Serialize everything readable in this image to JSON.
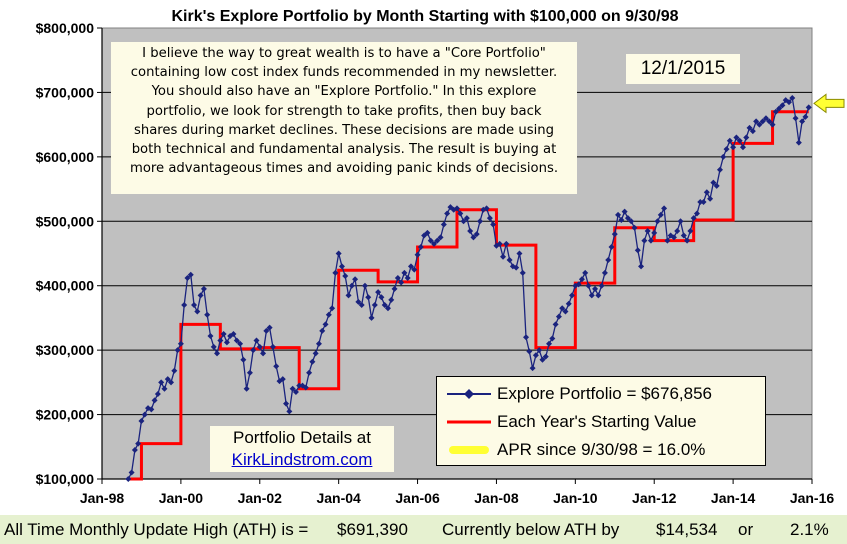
{
  "chart_data": {
    "type": "line",
    "title": "Kirk's Explore Portfolio by Month Starting with $100,000 on 9/30/98",
    "xlabel": "",
    "ylabel": "",
    "x_tick_labels": [
      "Jan-98",
      "Jan-00",
      "Jan-02",
      "Jan-04",
      "Jan-06",
      "Jan-08",
      "Jan-10",
      "Jan-12",
      "Jan-14",
      "Jan-16"
    ],
    "y_tick_labels": [
      "$100,000",
      "$200,000",
      "$300,000",
      "$400,000",
      "$500,000",
      "$600,000",
      "$700,000",
      "$800,000"
    ],
    "ylim": [
      100000,
      800000
    ],
    "xlim": [
      "1998-01",
      "2016-01"
    ],
    "grid": "horizontal",
    "legend_position": "bottom-right",
    "series": [
      {
        "name": "Explore Portfolio  =  $676,856",
        "style": "line-with-diamond-markers",
        "color": "#1a237e",
        "points": [
          [
            "1998-09",
            100000
          ],
          [
            "1998-10",
            110000
          ],
          [
            "1998-11",
            145000
          ],
          [
            "1998-12",
            155000
          ],
          [
            "1999-01",
            190000
          ],
          [
            "1999-02",
            200000
          ],
          [
            "1999-03",
            210000
          ],
          [
            "1999-04",
            208000
          ],
          [
            "1999-05",
            222000
          ],
          [
            "1999-06",
            232000
          ],
          [
            "1999-07",
            250000
          ],
          [
            "1999-08",
            240000
          ],
          [
            "1999-09",
            255000
          ],
          [
            "1999-10",
            250000
          ],
          [
            "1999-11",
            268000
          ],
          [
            "1999-12",
            300000
          ],
          [
            "2000-01",
            310000
          ],
          [
            "2000-02",
            370000
          ],
          [
            "2000-03",
            412000
          ],
          [
            "2000-04",
            417000
          ],
          [
            "2000-05",
            370000
          ],
          [
            "2000-06",
            360000
          ],
          [
            "2000-07",
            385000
          ],
          [
            "2000-08",
            395000
          ],
          [
            "2000-09",
            355000
          ],
          [
            "2000-10",
            322000
          ],
          [
            "2000-11",
            305000
          ],
          [
            "2000-12",
            295000
          ],
          [
            "2001-01",
            315000
          ],
          [
            "2001-02",
            325000
          ],
          [
            "2001-03",
            312000
          ],
          [
            "2001-04",
            322000
          ],
          [
            "2001-05",
            325000
          ],
          [
            "2001-06",
            315000
          ],
          [
            "2001-07",
            310000
          ],
          [
            "2001-08",
            285000
          ],
          [
            "2001-09",
            240000
          ],
          [
            "2001-10",
            265000
          ],
          [
            "2001-11",
            300000
          ],
          [
            "2001-12",
            315000
          ],
          [
            "2002-01",
            305000
          ],
          [
            "2002-02",
            295000
          ],
          [
            "2002-03",
            330000
          ],
          [
            "2002-04",
            335000
          ],
          [
            "2002-05",
            305000
          ],
          [
            "2002-06",
            275000
          ],
          [
            "2002-07",
            252000
          ],
          [
            "2002-08",
            255000
          ],
          [
            "2002-09",
            217000
          ],
          [
            "2002-10",
            205000
          ],
          [
            "2002-11",
            240000
          ],
          [
            "2002-12",
            235000
          ],
          [
            "2003-01",
            245000
          ],
          [
            "2003-02",
            245000
          ],
          [
            "2003-03",
            242000
          ],
          [
            "2003-04",
            265000
          ],
          [
            "2003-05",
            282000
          ],
          [
            "2003-06",
            295000
          ],
          [
            "2003-07",
            310000
          ],
          [
            "2003-08",
            330000
          ],
          [
            "2003-09",
            340000
          ],
          [
            "2003-10",
            355000
          ],
          [
            "2003-11",
            365000
          ],
          [
            "2003-12",
            420000
          ],
          [
            "2004-01",
            450000
          ],
          [
            "2004-02",
            430000
          ],
          [
            "2004-03",
            415000
          ],
          [
            "2004-04",
            385000
          ],
          [
            "2004-05",
            400000
          ],
          [
            "2004-06",
            410000
          ],
          [
            "2004-07",
            375000
          ],
          [
            "2004-08",
            370000
          ],
          [
            "2004-09",
            400000
          ],
          [
            "2004-10",
            382000
          ],
          [
            "2004-11",
            350000
          ],
          [
            "2004-12",
            370000
          ],
          [
            "2005-01",
            390000
          ],
          [
            "2005-02",
            382000
          ],
          [
            "2005-03",
            370000
          ],
          [
            "2005-04",
            365000
          ],
          [
            "2005-05",
            378000
          ],
          [
            "2005-06",
            395000
          ],
          [
            "2005-07",
            412000
          ],
          [
            "2005-08",
            405000
          ],
          [
            "2005-09",
            420000
          ],
          [
            "2005-10",
            412000
          ],
          [
            "2005-11",
            430000
          ],
          [
            "2005-12",
            425000
          ],
          [
            "2006-01",
            448000
          ],
          [
            "2006-02",
            460000
          ],
          [
            "2006-03",
            478000
          ],
          [
            "2006-04",
            482000
          ],
          [
            "2006-05",
            470000
          ],
          [
            "2006-06",
            465000
          ],
          [
            "2006-07",
            470000
          ],
          [
            "2006-08",
            475000
          ],
          [
            "2006-09",
            495000
          ],
          [
            "2006-10",
            512000
          ],
          [
            "2006-11",
            522000
          ],
          [
            "2006-12",
            518000
          ],
          [
            "2007-01",
            520000
          ],
          [
            "2007-02",
            512000
          ],
          [
            "2007-03",
            500000
          ],
          [
            "2007-04",
            505000
          ],
          [
            "2007-05",
            485000
          ],
          [
            "2007-06",
            475000
          ],
          [
            "2007-07",
            480000
          ],
          [
            "2007-08",
            500000
          ],
          [
            "2007-09",
            518000
          ],
          [
            "2007-10",
            520000
          ],
          [
            "2007-11",
            505000
          ],
          [
            "2007-12",
            495000
          ],
          [
            "2008-01",
            462000
          ],
          [
            "2008-02",
            465000
          ],
          [
            "2008-03",
            445000
          ],
          [
            "2008-04",
            465000
          ],
          [
            "2008-05",
            440000
          ],
          [
            "2008-06",
            430000
          ],
          [
            "2008-07",
            428000
          ],
          [
            "2008-08",
            450000
          ],
          [
            "2008-09",
            420000
          ],
          [
            "2008-10",
            320000
          ],
          [
            "2008-11",
            298000
          ],
          [
            "2008-12",
            272000
          ],
          [
            "2009-01",
            292000
          ],
          [
            "2009-02",
            300000
          ],
          [
            "2009-03",
            285000
          ],
          [
            "2009-04",
            290000
          ],
          [
            "2009-05",
            310000
          ],
          [
            "2009-06",
            318000
          ],
          [
            "2009-07",
            340000
          ],
          [
            "2009-08",
            352000
          ],
          [
            "2009-09",
            365000
          ],
          [
            "2009-10",
            360000
          ],
          [
            "2009-11",
            372000
          ],
          [
            "2009-12",
            385000
          ],
          [
            "2010-01",
            400000
          ],
          [
            "2010-02",
            402000
          ],
          [
            "2010-03",
            410000
          ],
          [
            "2010-04",
            420000
          ],
          [
            "2010-05",
            400000
          ],
          [
            "2010-06",
            385000
          ],
          [
            "2010-07",
            395000
          ],
          [
            "2010-08",
            385000
          ],
          [
            "2010-09",
            400000
          ],
          [
            "2010-10",
            420000
          ],
          [
            "2010-11",
            440000
          ],
          [
            "2010-12",
            460000
          ],
          [
            "2011-01",
            480000
          ],
          [
            "2011-02",
            510000
          ],
          [
            "2011-03",
            502000
          ],
          [
            "2011-04",
            515000
          ],
          [
            "2011-05",
            505000
          ],
          [
            "2011-06",
            500000
          ],
          [
            "2011-07",
            490000
          ],
          [
            "2011-08",
            455000
          ],
          [
            "2011-09",
            430000
          ],
          [
            "2011-10",
            470000
          ],
          [
            "2011-11",
            485000
          ],
          [
            "2011-12",
            470000
          ],
          [
            "2012-01",
            482000
          ],
          [
            "2012-02",
            500000
          ],
          [
            "2012-03",
            510000
          ],
          [
            "2012-04",
            520000
          ],
          [
            "2012-05",
            470000
          ],
          [
            "2012-06",
            478000
          ],
          [
            "2012-07",
            475000
          ],
          [
            "2012-08",
            485000
          ],
          [
            "2012-09",
            500000
          ],
          [
            "2012-10",
            478000
          ],
          [
            "2012-11",
            470000
          ],
          [
            "2012-12",
            485000
          ],
          [
            "2013-01",
            505000
          ],
          [
            "2013-02",
            512000
          ],
          [
            "2013-03",
            530000
          ],
          [
            "2013-04",
            530000
          ],
          [
            "2013-05",
            545000
          ],
          [
            "2013-06",
            535000
          ],
          [
            "2013-07",
            560000
          ],
          [
            "2013-08",
            555000
          ],
          [
            "2013-09",
            580000
          ],
          [
            "2013-10",
            600000
          ],
          [
            "2013-11",
            612000
          ],
          [
            "2013-12",
            625000
          ],
          [
            "2014-01",
            615000
          ],
          [
            "2014-02",
            630000
          ],
          [
            "2014-03",
            625000
          ],
          [
            "2014-04",
            615000
          ],
          [
            "2014-05",
            630000
          ],
          [
            "2014-06",
            645000
          ],
          [
            "2014-07",
            640000
          ],
          [
            "2014-08",
            655000
          ],
          [
            "2014-09",
            650000
          ],
          [
            "2014-10",
            655000
          ],
          [
            "2014-11",
            660000
          ],
          [
            "2014-12",
            655000
          ],
          [
            "2015-01",
            650000
          ],
          [
            "2015-02",
            670000
          ],
          [
            "2015-03",
            675000
          ],
          [
            "2015-04",
            680000
          ],
          [
            "2015-05",
            688000
          ],
          [
            "2015-06",
            685000
          ],
          [
            "2015-07",
            691390
          ],
          [
            "2015-08",
            660000
          ],
          [
            "2015-09",
            622000
          ],
          [
            "2015-10",
            655000
          ],
          [
            "2015-11",
            662000
          ],
          [
            "2015-12",
            676856
          ]
        ]
      },
      {
        "name": "Each Year's Starting Value",
        "style": "step",
        "color": "#ff0000",
        "segments": [
          {
            "from": "1998-09",
            "to": "1999-01",
            "value": 100000
          },
          {
            "from": "1999-01",
            "to": "2000-01",
            "value": 155000
          },
          {
            "from": "2000-01",
            "to": "2001-01",
            "value": 340000
          },
          {
            "from": "2001-01",
            "to": "2002-01",
            "value": 302000
          },
          {
            "from": "2002-01",
            "to": "2003-01",
            "value": 304000
          },
          {
            "from": "2003-01",
            "to": "2004-01",
            "value": 240000
          },
          {
            "from": "2004-01",
            "to": "2005-01",
            "value": 424000
          },
          {
            "from": "2005-01",
            "to": "2006-01",
            "value": 406000
          },
          {
            "from": "2006-01",
            "to": "2007-01",
            "value": 460000
          },
          {
            "from": "2007-01",
            "to": "2008-01",
            "value": 518000
          },
          {
            "from": "2008-01",
            "to": "2009-01",
            "value": 463000
          },
          {
            "from": "2009-01",
            "to": "2010-01",
            "value": 304000
          },
          {
            "from": "2010-01",
            "to": "2011-01",
            "value": 404000
          },
          {
            "from": "2011-01",
            "to": "2012-01",
            "value": 490000
          },
          {
            "from": "2012-01",
            "to": "2013-01",
            "value": 470000
          },
          {
            "from": "2013-01",
            "to": "2014-01",
            "value": 502000
          },
          {
            "from": "2014-01",
            "to": "2015-01",
            "value": 621000
          },
          {
            "from": "2015-01",
            "to": "2015-12",
            "value": 670000
          }
        ]
      }
    ],
    "legend": [
      {
        "label": "Explore Portfolio  =  $676,856",
        "symbol": "diamond-line"
      },
      {
        "label": "Each Year's Starting Value",
        "symbol": "red-line"
      },
      {
        "label": "APR since 9/30/98 =  16.0%",
        "symbol": "yellow-line"
      }
    ],
    "annotations": {
      "note_lines": [
        "I believe the way to great wealth is to have a \"Core Portfolio\"",
        "containing low cost index funds recommended in my newsletter.",
        "You  should also have an \"Explore Portfolio.\" In this  explore",
        "portfolio, we look for strength to take profits, then buy back",
        "shares during market declines. These decisions are made using",
        "both technical and fundamental analysis. The result is buying at",
        "more advantageous times and avoiding panic kinds of decisions."
      ],
      "date": "12/1/2015",
      "details_title": "Portfolio Details at",
      "details_link": "KirkLindstrom.com"
    }
  },
  "colors": {
    "plot_background": "#c0c0c0",
    "portfolio_line": "#1a237e",
    "step_line": "#ff0000",
    "arrow": "#ffff33",
    "box_background": "#fdfbe6",
    "footer_background": "#e6f1d0",
    "link": "#0000cc"
  },
  "footer": {
    "ath_label": "All Time Monthly Update High (ATH) is =",
    "ath_value": "$691,390",
    "below_label": "Currently below ATH by",
    "below_value": "$14,534",
    "or_label": "or",
    "below_pct": "2.1%"
  },
  "arrow_icon": "yellow-left-arrow-icon"
}
